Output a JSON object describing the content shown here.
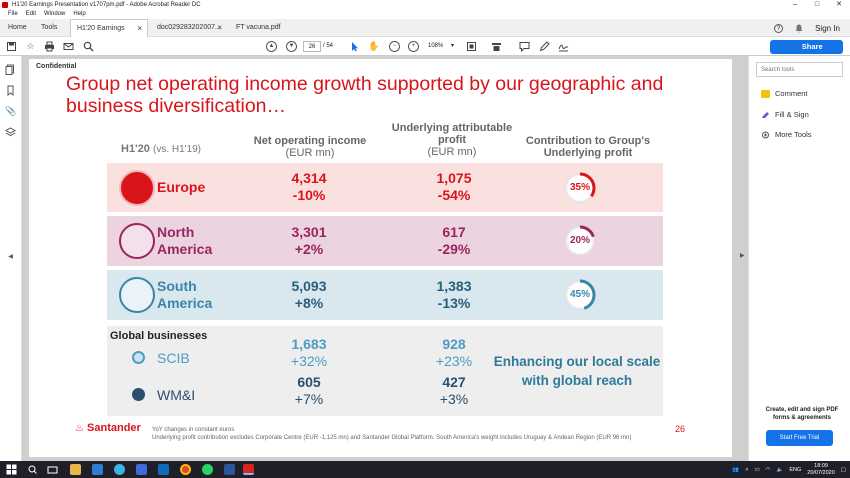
{
  "window": {
    "title": "H1'20 Earnings Presentation v1707pm.pdf - Adobe Acrobat Reader DC",
    "controls": [
      "–",
      "□",
      "✕"
    ]
  },
  "menu": [
    "File",
    "Edit",
    "Window",
    "Help"
  ],
  "tabs": {
    "home": "Home",
    "tools": "Tools",
    "docs": [
      {
        "label": "H1'20 Earnings Pre...",
        "close": "×"
      },
      {
        "label": "doc029283202007...",
        "close": "×"
      },
      {
        "label": "FT vacuna.pdf",
        "close": ""
      }
    ],
    "help": "?",
    "signin": "Sign In"
  },
  "toolbar": {
    "page_current": "26",
    "page_total": "/ 54",
    "zoom": "108%",
    "share": "Share"
  },
  "slide": {
    "confidential": "Confidential",
    "title": "Group net operating income growth supported by our geographic and business diversification…",
    "period": "H1'20",
    "period_vs": "(vs. H1'19)",
    "col1_head": "Net operating income",
    "col1_sub": "(EUR mn)",
    "col2_head": "Underlying attributable profit",
    "col2_sub": "(EUR mn)",
    "col3_head": "Contribution to Group's Underlying profit",
    "regions": [
      {
        "name1": "Europe",
        "name2": "",
        "noi": "4,314",
        "noi_chg": "-10%",
        "uap": "1,075",
        "uap_chg": "-54%",
        "contribution": "35%",
        "pct": 35,
        "color": "#d9141b"
      },
      {
        "name1": "North",
        "name2": "America",
        "noi": "3,301",
        "noi_chg": "+2%",
        "uap": "617",
        "uap_chg": "-29%",
        "contribution": "20%",
        "pct": 20,
        "color": "#9a2560"
      },
      {
        "name1": "South",
        "name2": "America",
        "noi": "5,093",
        "noi_chg": "+8%",
        "uap": "1,383",
        "uap_chg": "-13%",
        "contribution": "45%",
        "pct": 45,
        "color": "#3a86a8"
      }
    ],
    "global_title": "Global businesses",
    "global": [
      {
        "name": "SCIB",
        "noi": "1,683",
        "noi_chg": "+32%",
        "uap": "928",
        "uap_chg": "+23%",
        "color": "#4e9cc2"
      },
      {
        "name": "WM&I",
        "noi": "605",
        "noi_chg": "+7%",
        "uap": "427",
        "uap_chg": "+3%",
        "color": "#2b4f6e"
      }
    ],
    "tagline": "Enhancing our local scale with global reach",
    "logo": "Santander",
    "footnote1": "YoY changes in constant euros",
    "footnote2": "Underlying profit contribution excludes Corporate Centre (EUR -1,125 mn) and Santander Global Platform. South America's weight includes Uruguay & Andean Region (EUR 96 mn)",
    "page_number": "26"
  },
  "rightpane": {
    "search_placeholder": "Search tools",
    "items": [
      "Comment",
      "Fill & Sign",
      "More Tools"
    ],
    "promo": "Create, edit and sign PDF forms & agreements",
    "trial": "Start Free Trial"
  },
  "taskbar": {
    "lang": "ENG",
    "time": "18:09",
    "date": "20/07/2020"
  }
}
